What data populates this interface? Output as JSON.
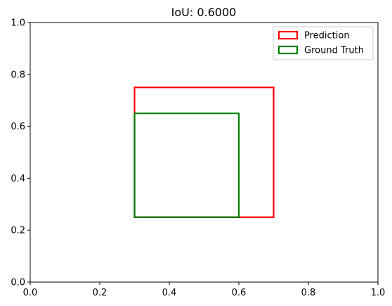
{
  "chart_data": {
    "type": "rectangles",
    "title": "IoU: 0.6000",
    "xlabel": "",
    "ylabel": "",
    "xlim": [
      0.0,
      1.0
    ],
    "ylim": [
      0.0,
      1.0
    ],
    "xticks": [
      0.0,
      0.2,
      0.4,
      0.6,
      0.8,
      1.0
    ],
    "yticks": [
      0.0,
      0.2,
      0.4,
      0.6,
      0.8,
      1.0
    ],
    "xtick_labels": [
      "0.0",
      "0.2",
      "0.4",
      "0.6",
      "0.8",
      "1.0"
    ],
    "ytick_labels": [
      "0.0",
      "0.2",
      "0.4",
      "0.6",
      "0.8",
      "1.0"
    ],
    "grid": false,
    "legend_position": "upper-right",
    "boxes": [
      {
        "name": "Prediction",
        "color": "#ff0000",
        "x0": 0.3,
        "y0": 0.25,
        "x1": 0.7,
        "y1": 0.75
      },
      {
        "name": "Ground Truth",
        "color": "#008000",
        "x0": 0.3,
        "y0": 0.25,
        "x1": 0.6,
        "y1": 0.65
      }
    ]
  }
}
